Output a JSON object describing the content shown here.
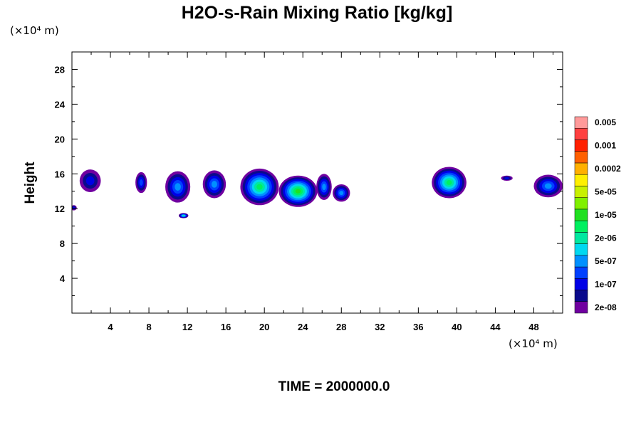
{
  "chart_data": {
    "type": "heatmap",
    "title": "H2O-s-Rain Mixing Ratio [kg/kg]",
    "ylabel": "Height",
    "y_unit": "(×10⁴ m)",
    "x_unit": "(×10⁴ m)",
    "xlim": [
      0,
      51
    ],
    "ylim": [
      0,
      30
    ],
    "x_ticks": [
      4,
      8,
      12,
      16,
      20,
      24,
      28,
      32,
      36,
      40,
      44,
      48
    ],
    "y_ticks": [
      4,
      8,
      12,
      16,
      20,
      24,
      28
    ],
    "x_tick_labels": [
      "4",
      "8",
      "12",
      "16",
      "20",
      "24",
      "28",
      "32",
      "36",
      "40",
      "44",
      "48"
    ],
    "y_tick_labels": [
      "4",
      "8",
      "12",
      "16",
      "20",
      "24",
      "28"
    ],
    "footer": "TIME = 2000000.0",
    "colorbar": {
      "colors": [
        "#7000a0",
        "#0a0a8c",
        "#0000e6",
        "#0040ff",
        "#0090ff",
        "#00d8f0",
        "#00e8a0",
        "#00f060",
        "#20e020",
        "#80f000",
        "#c8f000",
        "#ffef00",
        "#ffb000",
        "#ff6000",
        "#ff2000",
        "#ff4040",
        "#ff9a9a"
      ],
      "labels": [
        "2e-08",
        "1e-07",
        "5e-07",
        "2e-06",
        "1e-05",
        "5e-05",
        "0.0002",
        "0.001",
        "0.005"
      ]
    },
    "features": [
      {
        "cx": 1.9,
        "cy": 15.2,
        "rx": 1.1,
        "ry": 1.3,
        "peak": 2
      },
      {
        "cx": 0.2,
        "cy": 12.1,
        "rx": 0.3,
        "ry": 0.3,
        "peak": 2
      },
      {
        "cx": 7.2,
        "cy": 15.0,
        "rx": 0.6,
        "ry": 1.2,
        "peak": 3
      },
      {
        "cx": 11.0,
        "cy": 14.5,
        "rx": 1.3,
        "ry": 1.8,
        "peak": 4
      },
      {
        "cx": 11.6,
        "cy": 11.2,
        "rx": 0.5,
        "ry": 0.3,
        "peak": 6
      },
      {
        "cx": 14.8,
        "cy": 14.8,
        "rx": 1.2,
        "ry": 1.6,
        "peak": 4
      },
      {
        "cx": 19.5,
        "cy": 14.5,
        "rx": 2.0,
        "ry": 2.1,
        "peak": 7
      },
      {
        "cx": 23.5,
        "cy": 14.0,
        "rx": 2.0,
        "ry": 1.8,
        "peak": 8
      },
      {
        "cx": 26.2,
        "cy": 14.5,
        "rx": 0.8,
        "ry": 1.5,
        "peak": 4
      },
      {
        "cx": 28.0,
        "cy": 13.8,
        "rx": 0.9,
        "ry": 1.0,
        "peak": 4
      },
      {
        "cx": 39.2,
        "cy": 15.0,
        "rx": 1.8,
        "ry": 1.8,
        "peak": 7
      },
      {
        "cx": 45.2,
        "cy": 15.5,
        "rx": 0.6,
        "ry": 0.3,
        "peak": 2
      },
      {
        "cx": 49.5,
        "cy": 14.6,
        "rx": 1.5,
        "ry": 1.3,
        "peak": 4
      }
    ]
  }
}
